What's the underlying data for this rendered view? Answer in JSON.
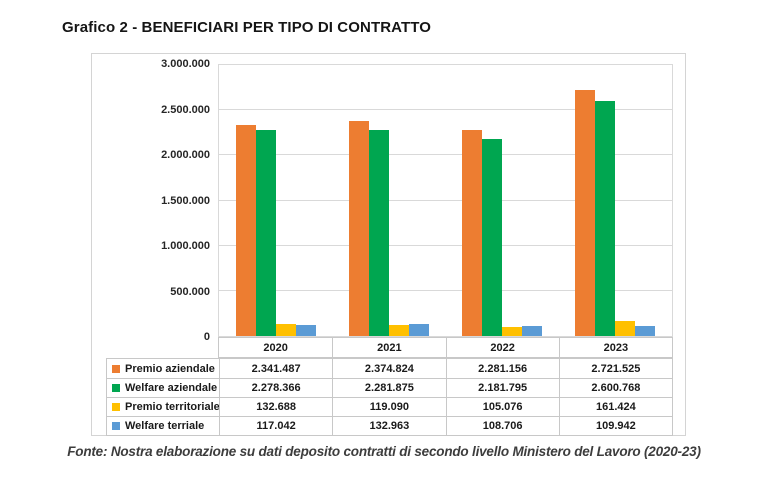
{
  "page": {
    "title": "Grafico 2 - BENEFICIARI PER TIPO DI CONTRATTO",
    "source_note": "Fonte: Nostra elaborazione su dati deposito contratti di secondo livello Ministero del Lavoro (2020-23)"
  },
  "colors": {
    "premio_aziendale": "#ED7D31",
    "welfare_aziendale": "#00A650",
    "premio_territoriale": "#FFC000",
    "welfare_terriale": "#5B9BD5",
    "gridline": "#D9D9D9",
    "table_border": "#C8C8C8"
  },
  "chart_data": {
    "type": "bar",
    "title": "Grafico 2 - BENEFICIARI PER TIPO DI CONTRATTO",
    "categories": [
      "2020",
      "2021",
      "2022",
      "2023"
    ],
    "series": [
      {
        "name": "Premio aziendale",
        "color": "#ED7D31",
        "values": [
          2341487,
          2374824,
          2281156,
          2721525
        ],
        "labels": [
          "2.341.487",
          "2.374.824",
          "2.281.156",
          "2.721.525"
        ]
      },
      {
        "name": "Welfare aziendale",
        "color": "#00A650",
        "values": [
          2278366,
          2281875,
          2181795,
          2600768
        ],
        "labels": [
          "2.278.366",
          "2.281.875",
          "2.181.795",
          "2.600.768"
        ]
      },
      {
        "name": "Premio territoriale",
        "color": "#FFC000",
        "values": [
          132688,
          119090,
          105076,
          161424
        ],
        "labels": [
          "132.688",
          "119.090",
          "105.076",
          "161.424"
        ]
      },
      {
        "name": "Welfare terriale",
        "color": "#5B9BD5",
        "values": [
          117042,
          132963,
          108706,
          109942
        ],
        "labels": [
          "117.042",
          "132.963",
          "108.706",
          "109.942"
        ]
      }
    ],
    "xlabel": "",
    "ylabel": "",
    "ylim": [
      0,
      3000000
    ],
    "ytick_labels": [
      "3.000.000",
      "2.500.000",
      "2.000.000",
      "1.500.000",
      "1.000.000",
      "500.000",
      "0"
    ],
    "grid": true,
    "legend_position": "data-table-row-headers"
  }
}
